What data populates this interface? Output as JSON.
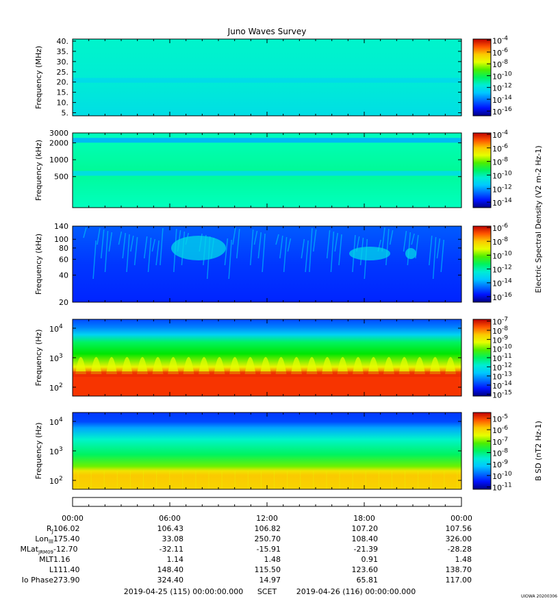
{
  "title": "Juno Waves Survey",
  "chart_data": [
    {
      "type": "heatmap",
      "ylabel": "Frequency (MHz)",
      "ylim": [
        3.5,
        41
      ],
      "yticks": [
        "5.",
        "10.",
        "15.",
        "20.",
        "25.",
        "30.",
        "35.",
        "40."
      ],
      "ytick_values": [
        5,
        10,
        15,
        20,
        25,
        30,
        35,
        40
      ],
      "yscale": "linear",
      "colorbar_ticks": [
        "10-4",
        "10-6",
        "10-8",
        "10-10",
        "10-12",
        "10-14",
        "10-16"
      ],
      "colorbar_exponents": [
        -4,
        -6,
        -8,
        -10,
        -12,
        -14,
        -16
      ],
      "colorbar_range": [
        -16.8,
        -3.8
      ],
      "bands": [
        {
          "y": 21,
          "value": -12.3
        }
      ]
    },
    {
      "type": "heatmap",
      "ylabel": "Frequency (kHz)",
      "ylim": [
        140,
        3000
      ],
      "yticks": [
        "500",
        "1000",
        "2000",
        "3000"
      ],
      "ytick_values": [
        500,
        1000,
        2000,
        3000
      ],
      "yscale": "log",
      "colorbar_ticks": [
        "10-4",
        "10-6",
        "10-8",
        "10-10",
        "10-12",
        "10-14"
      ],
      "colorbar_exponents": [
        -4,
        -6,
        -8,
        -10,
        -12,
        -14
      ],
      "colorbar_range": [
        -14.8,
        -3.8
      ],
      "colorbar_label": "Electric Spectral Density (V2 m-2 Hz-1)",
      "bands": [
        {
          "y": 2250,
          "value": -11.8
        },
        {
          "y": 580,
          "value": -11.0
        }
      ]
    },
    {
      "type": "heatmap",
      "ylabel": "Frequency (kHz)",
      "ylim": [
        20,
        140
      ],
      "yticks": [
        "20",
        "40",
        "60",
        "80",
        "100",
        "140"
      ],
      "ytick_values": [
        20,
        40,
        60,
        80,
        100,
        140
      ],
      "yscale": "log",
      "colorbar_ticks": [
        "10-6",
        "10-8",
        "10-10",
        "10-12",
        "10-14",
        "10-16"
      ],
      "colorbar_exponents": [
        -6,
        -8,
        -10,
        -12,
        -14,
        -16
      ],
      "colorbar_range": [
        -16.8,
        -5.8
      ],
      "bands": []
    },
    {
      "type": "heatmap",
      "ylabel": "Frequency (Hz)",
      "ylim": [
        50,
        20000
      ],
      "yticks": [
        "102",
        "103",
        "104"
      ],
      "ytick_values": [
        100,
        1000,
        10000
      ],
      "yscale": "log",
      "colorbar_ticks": [
        "10-7",
        "10-8",
        "10-9",
        "10-10",
        "10-11",
        "10-12",
        "10-13",
        "10-14",
        "10-15"
      ],
      "colorbar_exponents": [
        -7,
        -8,
        -9,
        -10,
        -11,
        -12,
        -13,
        -14,
        -15
      ],
      "colorbar_range": [
        -15.2,
        -6.8
      ],
      "bands": []
    },
    {
      "type": "heatmap",
      "ylabel": "Frequency (Hz)",
      "ylim": [
        50,
        20000
      ],
      "yticks": [
        "102",
        "103",
        "104"
      ],
      "ytick_values": [
        100,
        1000,
        10000
      ],
      "yscale": "log",
      "colorbar_ticks": [
        "10-5",
        "10-6",
        "10-7",
        "10-8",
        "10-9",
        "10-10",
        "10-11"
      ],
      "colorbar_exponents": [
        -5,
        -6,
        -7,
        -8,
        -9,
        -10,
        -11
      ],
      "colorbar_range": [
        -11.2,
        -4.5
      ],
      "colorbar_label": "B SD (nT2 Hz-1)",
      "bands": []
    }
  ],
  "time_axis": {
    "labels": [
      "00:00",
      "06:00",
      "12:00",
      "18:00",
      "00:00"
    ],
    "rows": [
      {
        "label": "RJ",
        "values": [
          "106.02",
          "106.43",
          "106.82",
          "107.20",
          "107.56"
        ]
      },
      {
        "label": "LonIII",
        "values": [
          "175.40",
          "33.08",
          "250.70",
          "108.40",
          "326.00"
        ]
      },
      {
        "label": "MLatJRM09",
        "values": [
          "-12.70",
          "-32.11",
          "-15.91",
          "-21.39",
          "-28.28"
        ]
      },
      {
        "label": "MLT",
        "values": [
          "1.16",
          "1.14",
          "1.48",
          "0.91",
          "1.48"
        ]
      },
      {
        "label": "L",
        "values": [
          "111.40",
          "148.40",
          "115.50",
          "123.60",
          "138.70"
        ]
      },
      {
        "label": "Io Phase",
        "values": [
          "273.90",
          "324.40",
          "14.97",
          "65.81",
          "117.00"
        ]
      }
    ],
    "start": "2019-04-25 (115) 00:00:00.000",
    "scet": "SCET",
    "end": "2019-04-26 (116) 00:00:00.000"
  },
  "footer": "UIOWA 20200306"
}
